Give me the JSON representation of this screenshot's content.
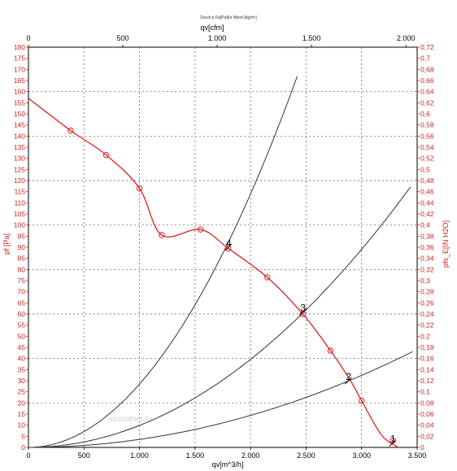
{
  "colors": {
    "fan_curve": "#dd2222",
    "system_curves": "#333333",
    "axis_right": "#cc2222",
    "axis_left": "#cc2222"
  },
  "chart_data": {
    "type": "line",
    "title": "Druck p Fa[Pa]für Nbort.[kg/m³]",
    "watermark": "ecmotors.ru",
    "grid": true,
    "x_bottom": {
      "label": "qv[m^3/h]",
      "range": [
        0,
        3500
      ],
      "ticks": [
        "0",
        "500",
        "1.000",
        "1.500",
        "2.000",
        "2.500",
        "3.000",
        "3.500"
      ]
    },
    "x_top": {
      "label": "qv[cfm]",
      "range": [
        0,
        2059.9
      ],
      "ticks": [
        "0",
        "500",
        "1.000",
        "1.500",
        "2.000"
      ]
    },
    "y_left": {
      "label": "pf [Pa]",
      "range": [
        0,
        180
      ],
      "ticks": [
        "0",
        "5",
        "10",
        "15",
        "20",
        "25",
        "30",
        "35",
        "40",
        "45",
        "50",
        "55",
        "60",
        "65",
        "70",
        "75",
        "80",
        "85",
        "90",
        "95",
        "100",
        "105",
        "110",
        "115",
        "120",
        "125",
        "130",
        "135",
        "140",
        "145",
        "150",
        "155",
        "160",
        "165",
        "170",
        "175",
        "180"
      ]
    },
    "y_right": {
      "label": "pfs_E[IN H2O]",
      "range": [
        0,
        0.7227
      ],
      "ticks": [
        "0",
        "0,02",
        "0,04",
        "0,06",
        "0,08",
        "0,1",
        "0,12",
        "0,14",
        "0,16",
        "0,18",
        "0,2",
        "0,22",
        "0,24",
        "0,26",
        "0,28",
        "0,3",
        "0,32",
        "0,34",
        "0,36",
        "0,38",
        "0,4",
        "0,42",
        "0,44",
        "0,46",
        "0,48",
        "0,5",
        "0,52",
        "0,54",
        "0,56",
        "0,58",
        "0,6",
        "0,62",
        "0,64",
        "0,66",
        "0,68",
        "0,7",
        "0,72"
      ]
    },
    "series": [
      {
        "style": "fan-curve",
        "x": [
          0,
          380,
          700,
          1000,
          1200,
          1550,
          1800,
          2150,
          2470,
          2720,
          2900,
          3000,
          3180,
          3330
        ],
        "y": [
          157,
          142.5,
          131.5,
          116.5,
          95.5,
          98,
          89.5,
          76.5,
          60,
          43.5,
          30,
          21,
          5.5,
          0
        ],
        "markers": [
          {
            "x": 380,
            "y": 142.5
          },
          {
            "x": 700,
            "y": 131.5
          },
          {
            "x": 1000,
            "y": 116.5
          },
          {
            "x": 1200,
            "y": 95.5
          },
          {
            "x": 1550,
            "y": 98
          },
          {
            "x": 1800,
            "y": 89.5
          },
          {
            "x": 2150,
            "y": 76.5
          },
          {
            "x": 2470,
            "y": 60
          },
          {
            "x": 2720,
            "y": 43.5
          },
          {
            "x": 3000,
            "y": 21
          },
          {
            "x": 3280,
            "y": 3
          }
        ]
      },
      {
        "style": "system-curve",
        "k": 2.85e-05,
        "x_max": 2420
      },
      {
        "style": "system-curve",
        "k": 9.9e-06,
        "x_max": 3440
      },
      {
        "style": "system-curve",
        "k": 3.6e-06,
        "x_max": 3470
      }
    ],
    "operating_points": [
      {
        "label": "4",
        "x": 1800,
        "y": 90
      },
      {
        "label": "3",
        "x": 2470,
        "y": 61
      },
      {
        "label": "2",
        "x": 2880,
        "y": 30
      },
      {
        "label": "1",
        "x": 3280,
        "y": 2
      }
    ]
  }
}
